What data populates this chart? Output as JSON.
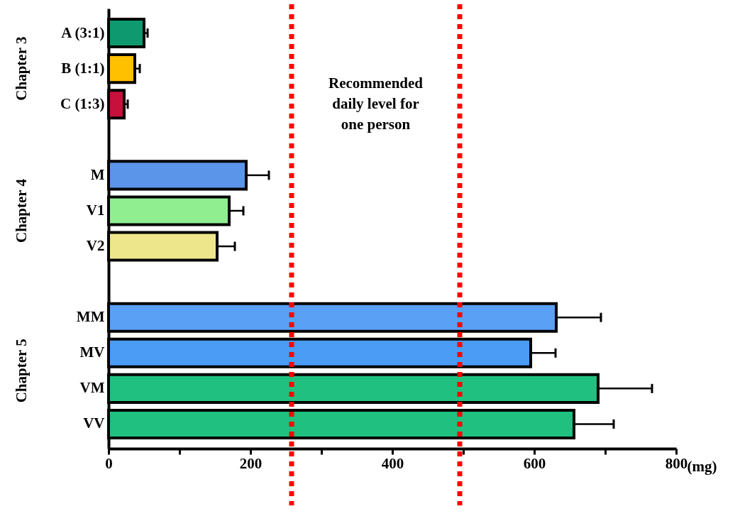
{
  "chart_data": {
    "type": "bar",
    "orientation": "horizontal",
    "xlabel": "(mg)",
    "categories": [
      "A (3:1)",
      "B (1:1)",
      "C (1:3)",
      null,
      "M",
      "V1",
      "V2",
      null,
      "MM",
      "MV",
      "VM",
      "VV"
    ],
    "values": [
      50,
      37,
      22,
      null,
      194,
      170,
      153,
      null,
      631,
      595,
      690,
      656
    ],
    "errors": [
      5,
      7,
      5,
      null,
      32,
      20,
      25,
      null,
      63,
      35,
      76,
      56
    ],
    "colors": [
      "#0e9a6e",
      "#ffc000",
      "#c8103c",
      null,
      "#5b95ea",
      "#90ee90",
      "#eee68b",
      null,
      "#5aa0f5",
      "#4a9cf5",
      "#20c080",
      "#20c080"
    ],
    "xlim": [
      0,
      800
    ],
    "xticks": [
      0,
      {
        "value": 100,
        "label": null
      },
      200,
      {
        "value": 300,
        "label": null
      },
      400,
      {
        "value": 500,
        "label": null
      },
      600,
      {
        "value": 700,
        "label": null
      },
      800
    ],
    "ref_lines": [
      {
        "axis": "x",
        "value": 258,
        "color": "#ff0000",
        "line_style": "dotted"
      },
      {
        "axis": "x",
        "value": 495,
        "color": "#ff0000",
        "line_style": "dotted"
      }
    ],
    "annotations": [
      "Chapter 3",
      "Chapter 4",
      "Chapter 5",
      "Recommended daily level for one person"
    ],
    "grid": false
  }
}
